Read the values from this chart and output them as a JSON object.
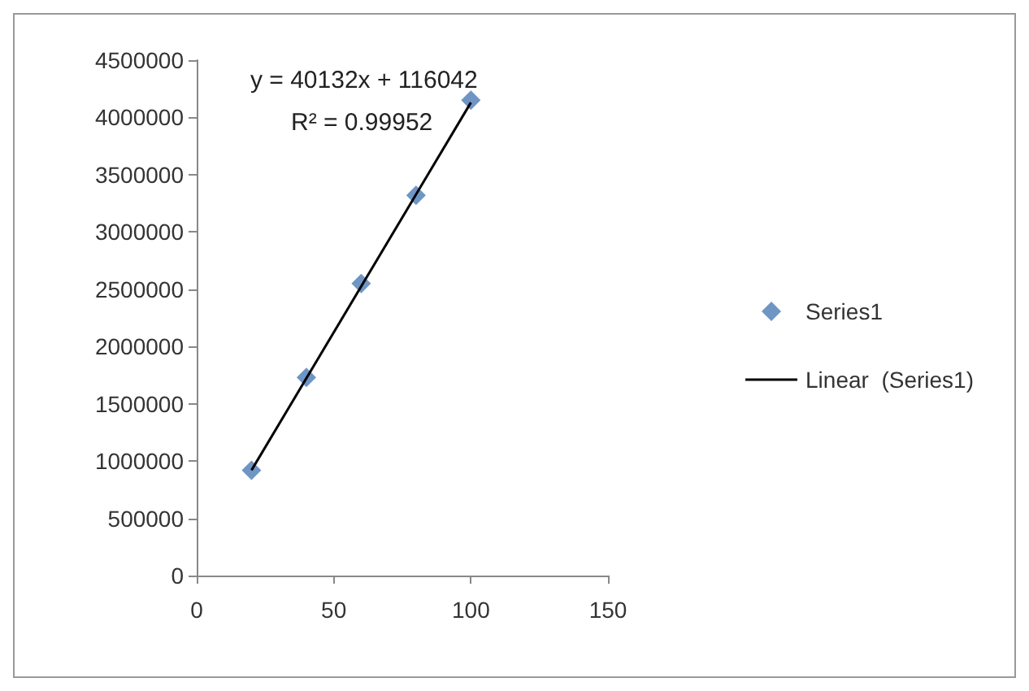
{
  "chart_data": {
    "type": "scatter",
    "series": [
      {
        "name": "Series1",
        "color": "#4a7ab5",
        "marker": "diamond",
        "x": [
          20,
          40,
          60,
          80,
          100
        ],
        "values": [
          920000,
          1730000,
          2550000,
          3320000,
          4150000
        ]
      },
      {
        "name": "Linear  (Series1)",
        "type": "line",
        "color": "#000000",
        "marker": "none",
        "line_style": "solid",
        "x": [
          20,
          100
        ],
        "values": [
          920000,
          4130000
        ]
      }
    ],
    "xlim": [
      0,
      150
    ],
    "xticks": [
      0,
      50,
      100,
      150
    ],
    "ylim": [
      0,
      4500000
    ],
    "yticks": [
      0,
      500000,
      1000000,
      1500000,
      2000000,
      2500000,
      3000000,
      3500000,
      4000000,
      4500000
    ],
    "annotations": [
      "y = 40132x + 116042",
      "R² = 0.99952"
    ],
    "grid": false,
    "legend": "right"
  }
}
